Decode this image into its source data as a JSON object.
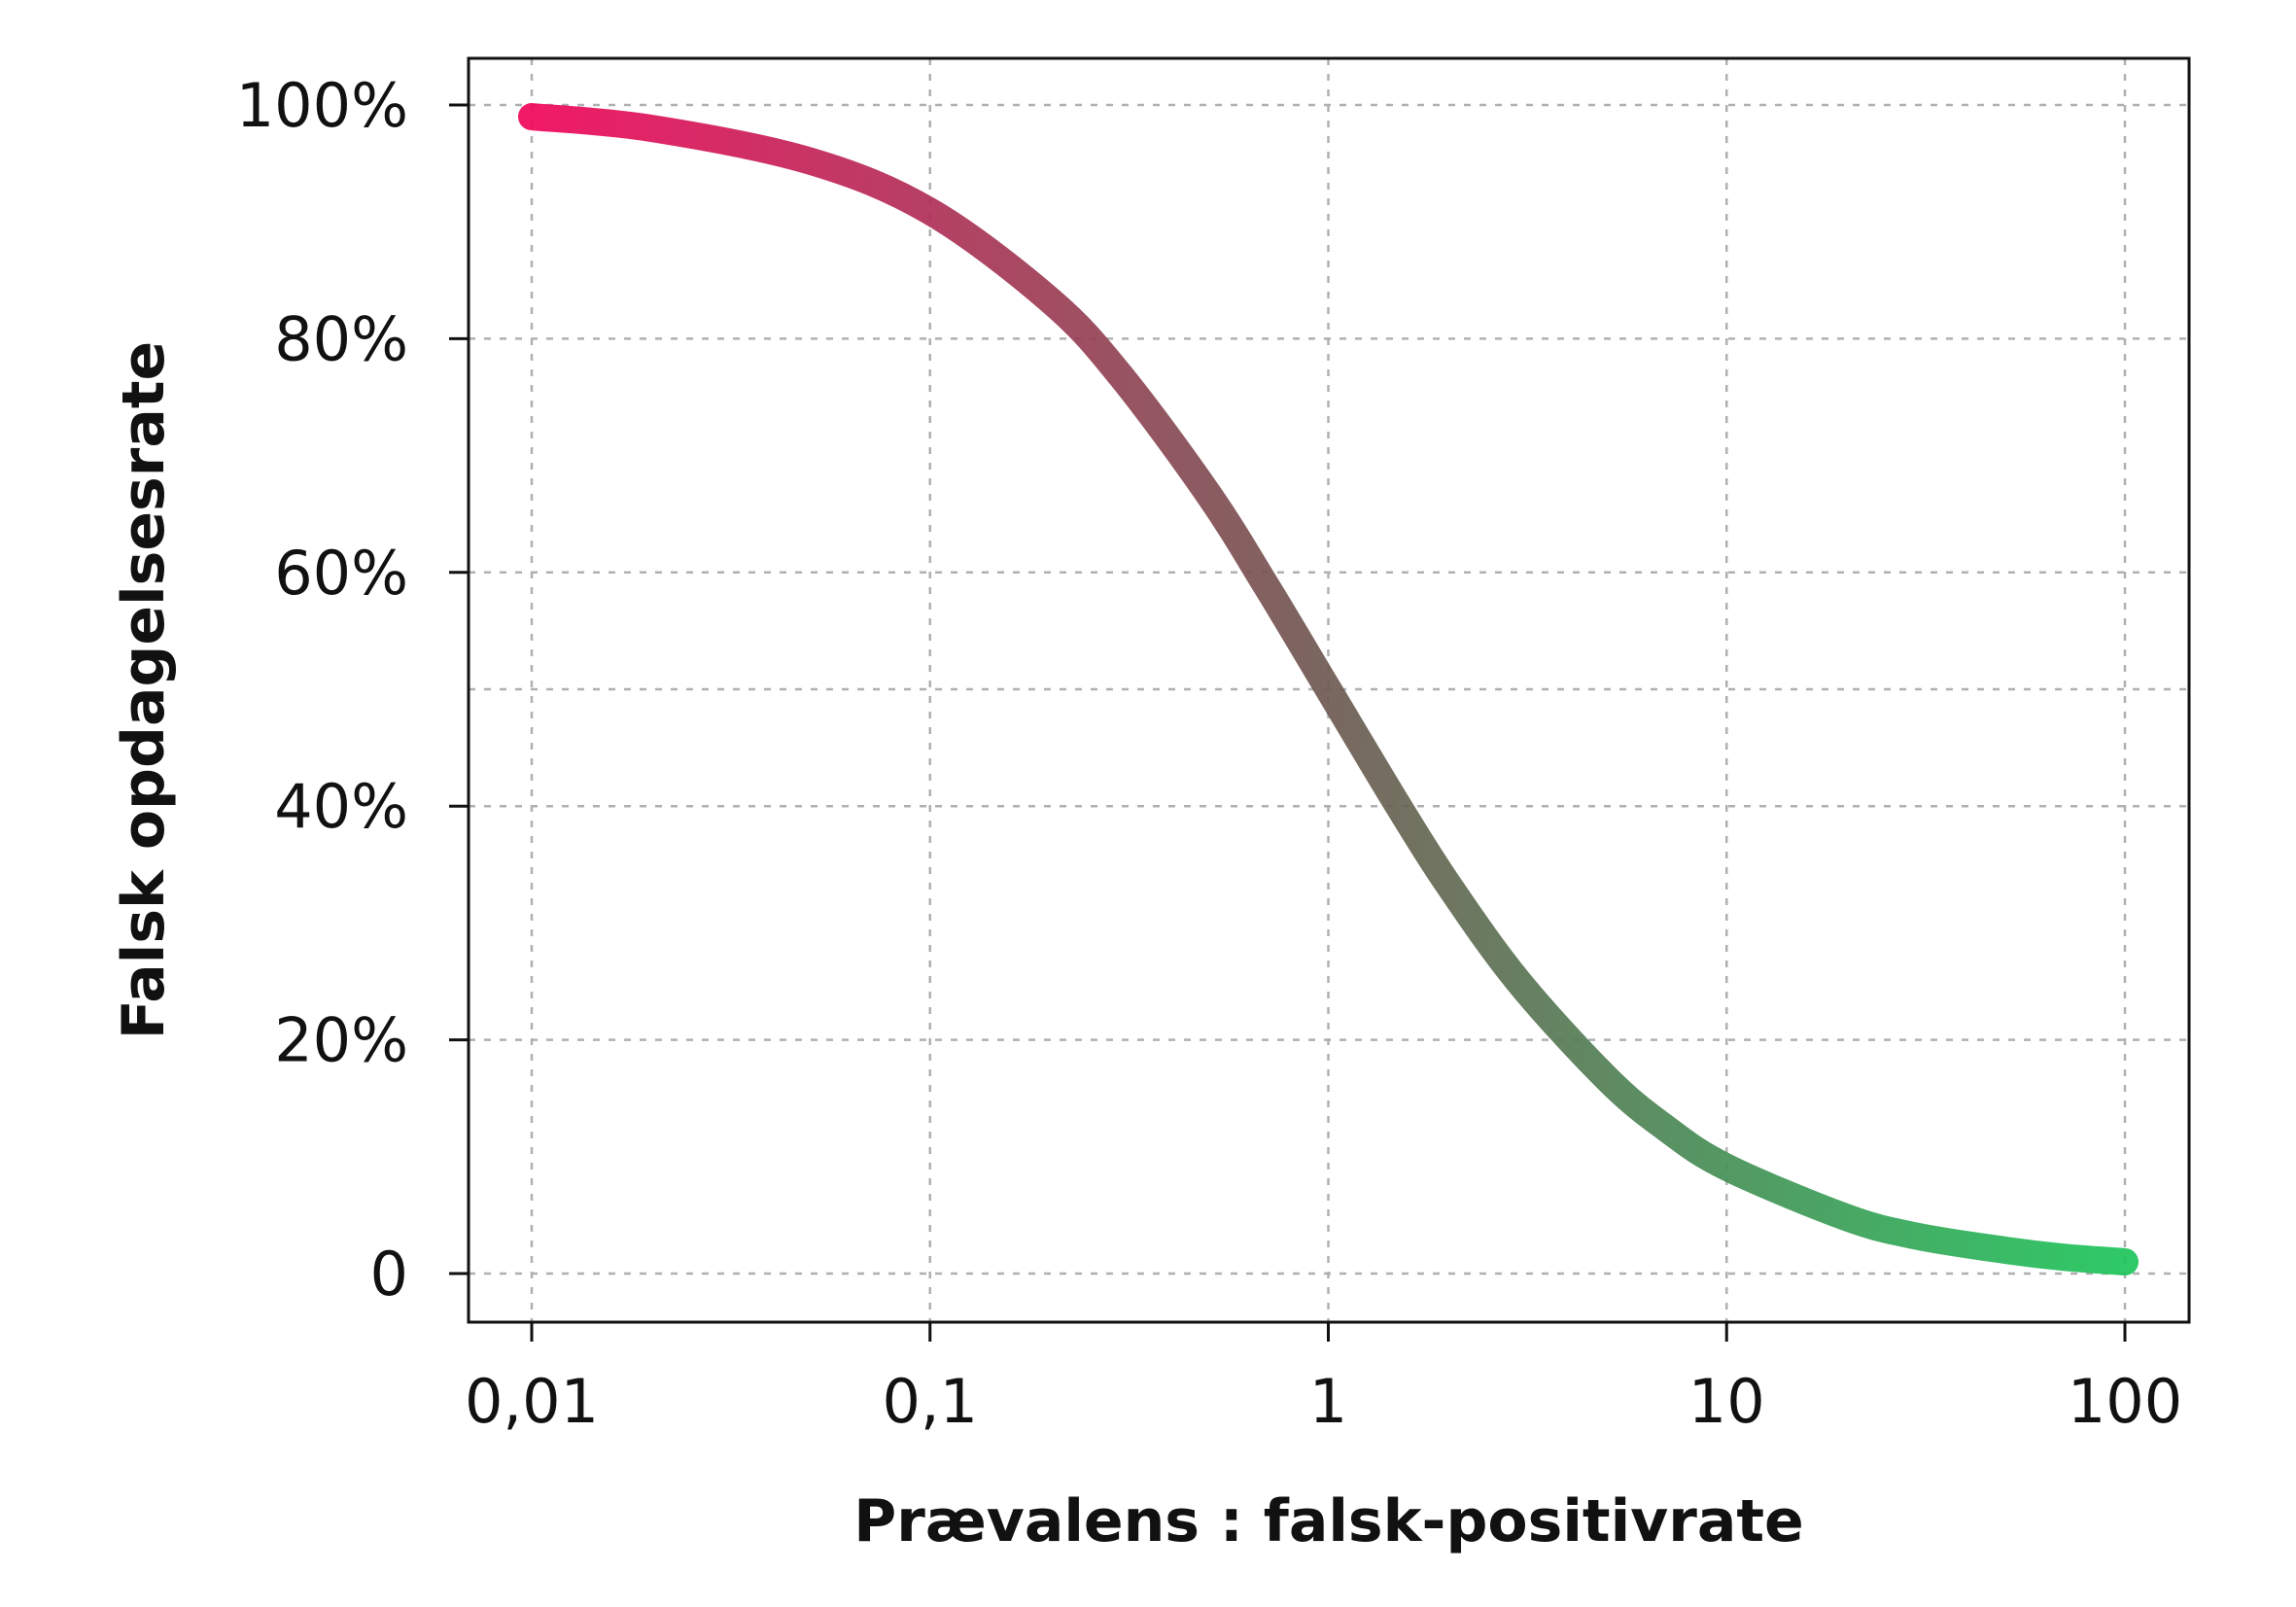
{
  "chart_data": {
    "type": "line",
    "xlabel": "Prævalens : falsk-positivrate",
    "ylabel": "Falsk opdagelsesrate",
    "x_scale": "log",
    "xlim": [
      0.01,
      100
    ],
    "ylim": [
      0,
      1
    ],
    "x_ticks": [
      {
        "value": 0.01,
        "label": "0,01"
      },
      {
        "value": 0.1,
        "label": "0,1"
      },
      {
        "value": 1,
        "label": "1"
      },
      {
        "value": 10,
        "label": "10"
      },
      {
        "value": 100,
        "label": "100"
      }
    ],
    "y_ticks": [
      {
        "value": 0,
        "label": "0"
      },
      {
        "value": 0.2,
        "label": "20%"
      },
      {
        "value": 0.4,
        "label": "40%"
      },
      {
        "value": 0.6,
        "label": "60%"
      },
      {
        "value": 0.8,
        "label": "80%"
      },
      {
        "value": 1.0,
        "label": "100%"
      }
    ],
    "grid": true,
    "reference_lines": {
      "y": [
        0.5
      ]
    },
    "gradient": {
      "start_color": "#f0065a",
      "mid_color": "#6e5a52",
      "end_color": "#1dc55a"
    },
    "series": [
      {
        "x": [
          0.01,
          0.02,
          0.05,
          0.1,
          0.2,
          0.3,
          0.5,
          0.7,
          1,
          1.5,
          2,
          3,
          5,
          7,
          10,
          20,
          30,
          50,
          70,
          100
        ],
        "values": [
          0.99,
          0.98,
          0.952,
          0.909,
          0.833,
          0.769,
          0.667,
          0.588,
          0.5,
          0.4,
          0.333,
          0.25,
          0.167,
          0.125,
          0.091,
          0.048,
          0.032,
          0.02,
          0.014,
          0.01
        ]
      }
    ]
  }
}
